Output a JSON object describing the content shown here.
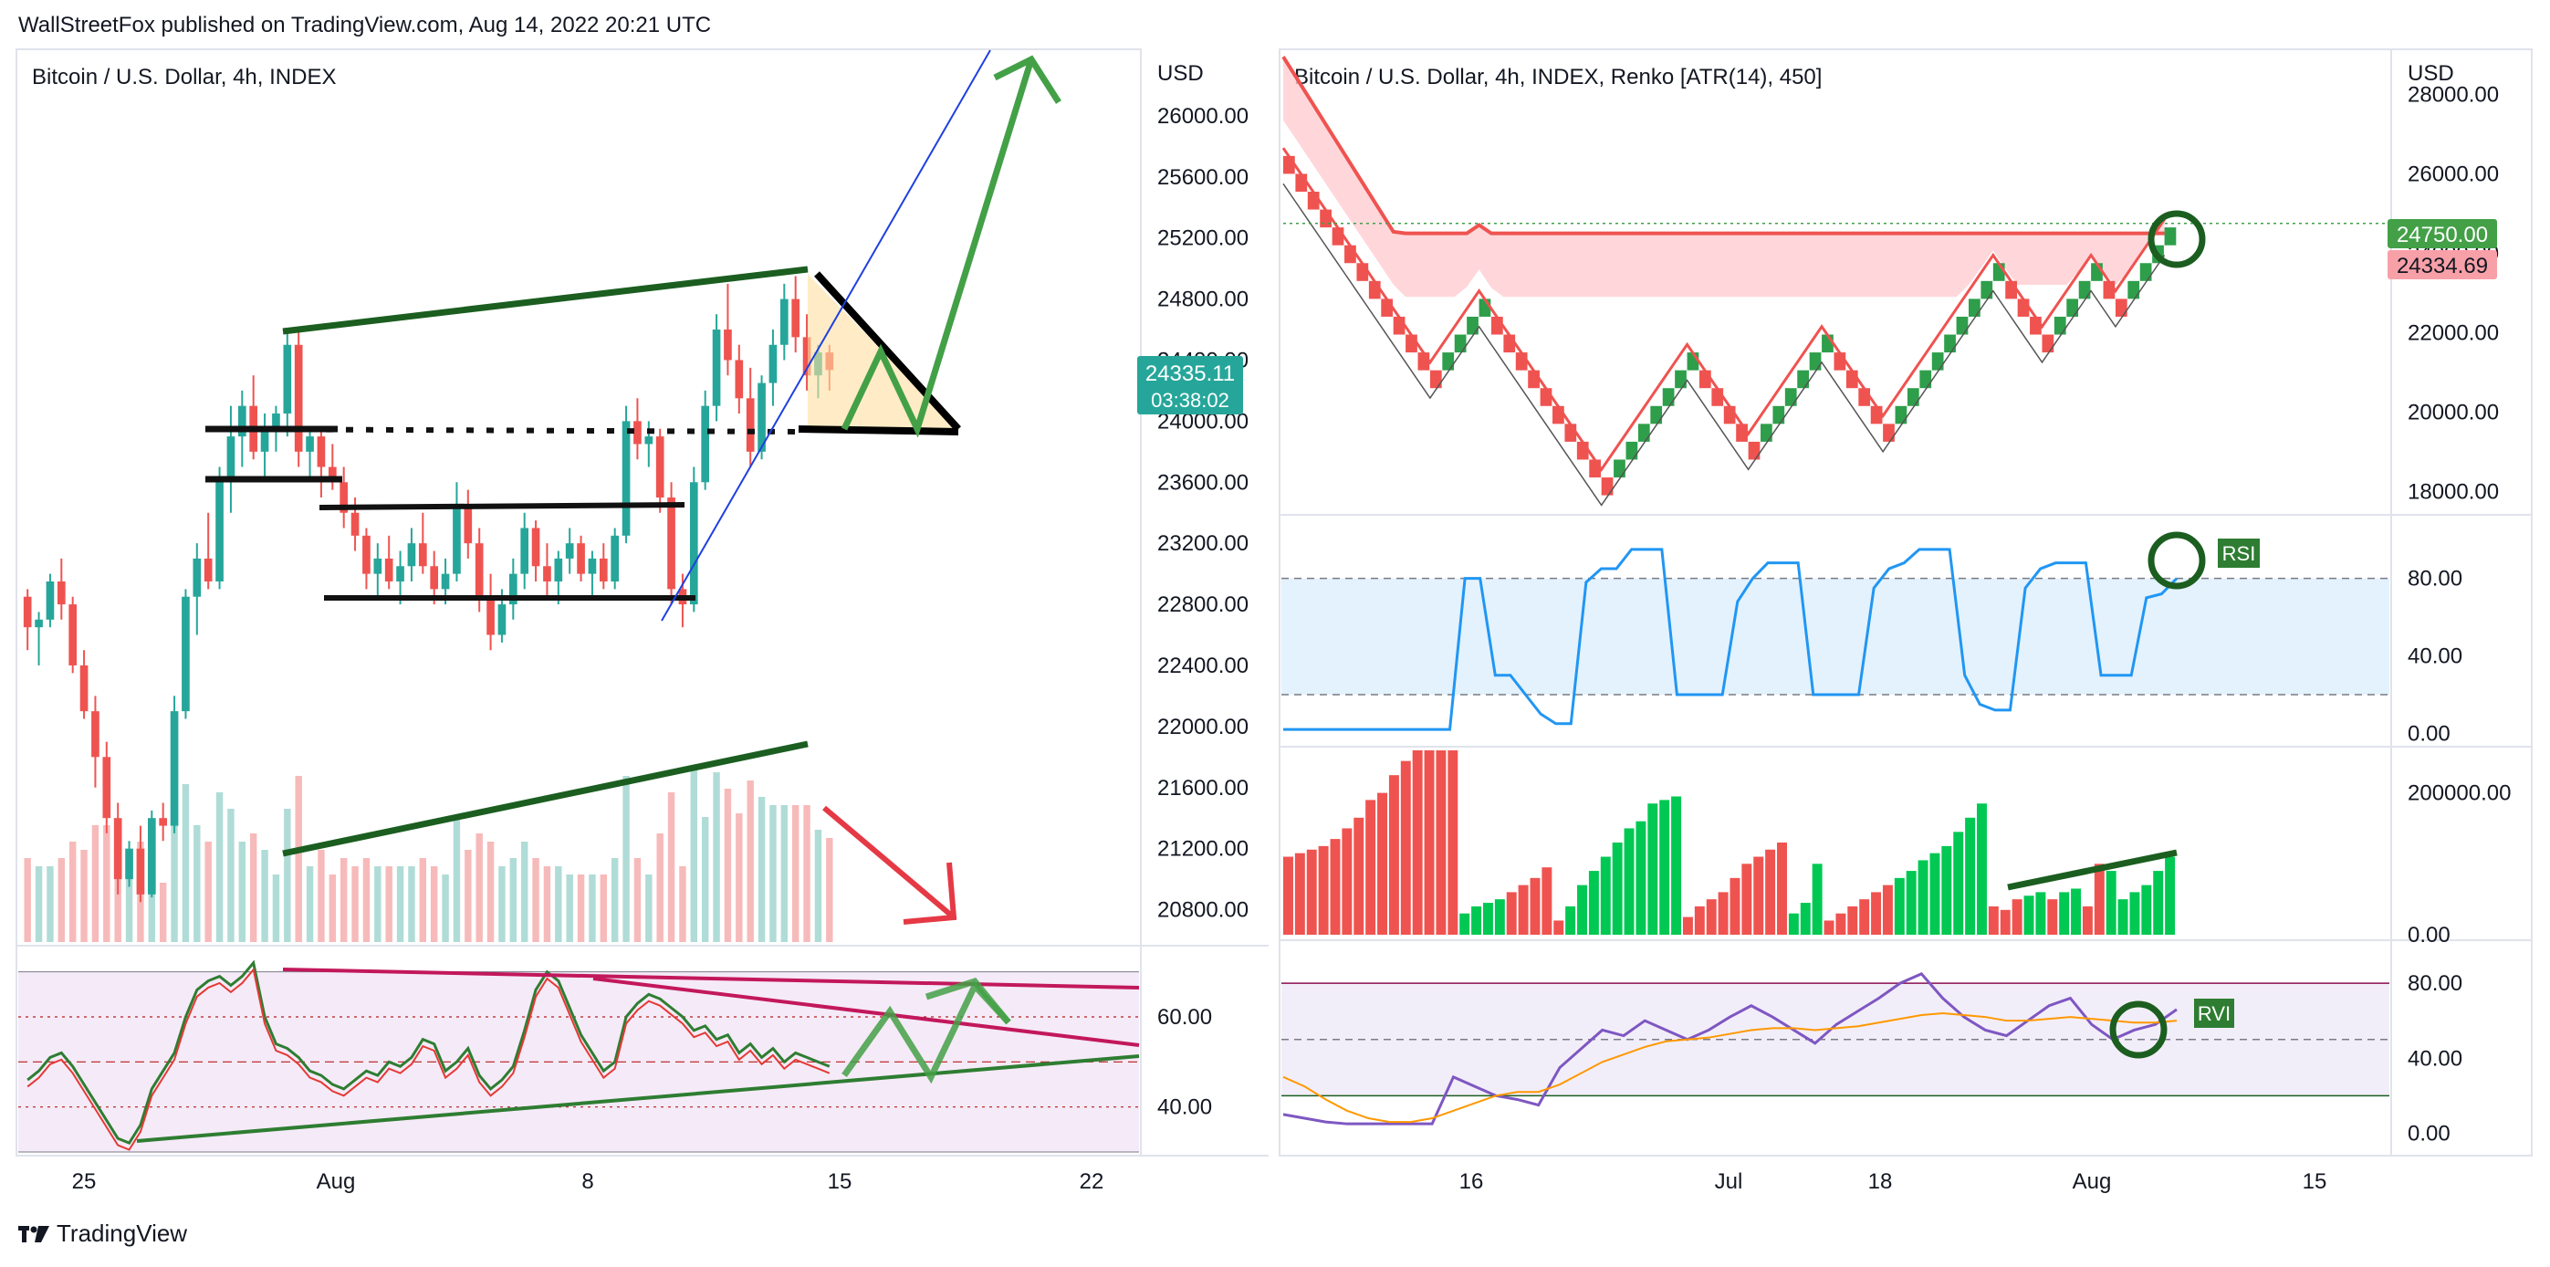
{
  "header": {
    "published": "WallStreetFox published on TradingView.com, Aug 14, 2022 20:21 UTC"
  },
  "footer": {
    "brand": "TradingView",
    "logo_icon": "tradingview-logo-icon"
  },
  "colors": {
    "up": "#26a69a",
    "down": "#ef5350",
    "renko_up": "#00c853",
    "renko_down": "#ef5350",
    "rsi": "#2196f3",
    "rvi": "#7e57c2",
    "rvi_signal": "#ff9800",
    "draw_green": "#1b5e20",
    "bright_green": "#43a047",
    "price_tag": "#26a69a"
  },
  "chart_data": [
    {
      "type": "candlestick",
      "title": "Bitcoin / U.S. Dollar, 4h, INDEX",
      "currency": "USD",
      "y_ticks": [
        "26000.00",
        "25600.00",
        "25200.00",
        "24800.00",
        "24400.00",
        "24000.00",
        "23600.00",
        "23200.00",
        "22800.00",
        "22400.00",
        "22000.00",
        "21600.00",
        "21200.00",
        "20800.00"
      ],
      "ylim": [
        20600,
        26400
      ],
      "x_ticks": [
        "25",
        "Aug",
        "8",
        "15",
        "22"
      ],
      "last_price": "24335.11",
      "countdown": "03:38:02",
      "volume_trendline_note": "rising volume",
      "candles": [
        [
          22850,
          22900,
          22500,
          22650
        ],
        [
          22650,
          22750,
          22400,
          22700
        ],
        [
          22700,
          23000,
          22650,
          22950
        ],
        [
          22950,
          23100,
          22700,
          22800
        ],
        [
          22800,
          22850,
          22350,
          22400
        ],
        [
          22400,
          22500,
          22050,
          22100
        ],
        [
          22100,
          22200,
          21600,
          21800
        ],
        [
          21800,
          21900,
          21300,
          21400
        ],
        [
          21400,
          21500,
          20900,
          21000
        ],
        [
          21000,
          21250,
          20950,
          21200
        ],
        [
          21200,
          21350,
          20850,
          20900
        ],
        [
          20900,
          21450,
          20880,
          21400
        ],
        [
          21400,
          21500,
          21250,
          21350
        ],
        [
          21350,
          22200,
          21300,
          22100
        ],
        [
          22100,
          22900,
          22050,
          22850
        ],
        [
          22850,
          23200,
          22600,
          23100
        ],
        [
          23100,
          23400,
          22900,
          22950
        ],
        [
          22950,
          23700,
          22900,
          23600
        ],
        [
          23600,
          24100,
          23400,
          23900
        ],
        [
          23900,
          24200,
          23700,
          24100
        ],
        [
          24100,
          24300,
          23750,
          23800
        ],
        [
          23800,
          24050,
          23600,
          23950
        ],
        [
          23950,
          24100,
          23800,
          24050
        ],
        [
          24050,
          24600,
          23900,
          24500
        ],
        [
          24500,
          24600,
          23700,
          23800
        ],
        [
          23800,
          23950,
          23600,
          23900
        ],
        [
          23900,
          23950,
          23500,
          23700
        ],
        [
          23700,
          23850,
          23550,
          23600
        ],
        [
          23600,
          23700,
          23300,
          23400
        ],
        [
          23400,
          23500,
          23150,
          23250
        ],
        [
          23250,
          23300,
          22900,
          23000
        ],
        [
          23000,
          23200,
          22850,
          23100
        ],
        [
          23100,
          23250,
          22900,
          22950
        ],
        [
          22950,
          23150,
          22800,
          23050
        ],
        [
          23050,
          23300,
          22950,
          23200
        ],
        [
          23200,
          23400,
          23000,
          23050
        ],
        [
          23050,
          23150,
          22800,
          22900
        ],
        [
          22900,
          23100,
          22800,
          23000
        ],
        [
          23000,
          23600,
          22950,
          23450
        ],
        [
          23450,
          23550,
          23100,
          23200
        ],
        [
          23200,
          23300,
          22750,
          22850
        ],
        [
          22850,
          23000,
          22500,
          22600
        ],
        [
          22600,
          22900,
          22550,
          22800
        ],
        [
          22800,
          23100,
          22700,
          23000
        ],
        [
          23000,
          23400,
          22900,
          23300
        ],
        [
          23300,
          23350,
          22950,
          23050
        ],
        [
          23050,
          23200,
          22850,
          22950
        ],
        [
          22950,
          23150,
          22800,
          23100
        ],
        [
          23100,
          23300,
          23000,
          23200
        ],
        [
          23200,
          23250,
          22950,
          23000
        ],
        [
          23000,
          23150,
          22850,
          23100
        ],
        [
          23100,
          23200,
          22900,
          22950
        ],
        [
          22950,
          23300,
          22900,
          23250
        ],
        [
          23250,
          24100,
          23200,
          24000
        ],
        [
          24000,
          24150,
          23750,
          23850
        ],
        [
          23850,
          24000,
          23700,
          23900
        ],
        [
          23900,
          23950,
          23400,
          23500
        ],
        [
          23500,
          23600,
          22800,
          22900
        ],
        [
          22900,
          23000,
          22650,
          22800
        ],
        [
          22800,
          23700,
          22750,
          23600
        ],
        [
          23600,
          24200,
          23550,
          24100
        ],
        [
          24100,
          24700,
          24000,
          24600
        ],
        [
          24600,
          24900,
          24300,
          24400
        ],
        [
          24400,
          24500,
          24050,
          24150
        ],
        [
          24150,
          24350,
          23700,
          23800
        ],
        [
          23800,
          24300,
          23750,
          24250
        ],
        [
          24250,
          24600,
          24100,
          24500
        ],
        [
          24500,
          24900,
          24400,
          24800
        ],
        [
          24800,
          24950,
          24450,
          24550
        ],
        [
          24550,
          24700,
          24200,
          24300
        ],
        [
          24300,
          24500,
          24150,
          24450
        ],
        [
          24450,
          24500,
          24200,
          24335
        ]
      ]
    },
    {
      "type": "oscillator",
      "title": "",
      "y_ticks": [
        "60.00",
        "40.00"
      ],
      "ylim": [
        30,
        75
      ],
      "values": [
        46,
        48,
        51,
        52,
        49,
        45,
        41,
        37,
        33,
        32,
        36,
        44,
        48,
        52,
        60,
        66,
        68,
        69,
        67,
        69,
        72,
        60,
        54,
        53,
        51,
        48,
        47,
        45,
        44,
        46,
        48,
        47,
        50,
        49,
        51,
        55,
        54,
        48,
        50,
        53,
        47,
        44,
        46,
        49,
        57,
        66,
        70,
        68,
        62,
        56,
        52,
        48,
        50,
        60,
        63,
        65,
        64,
        62,
        60,
        57,
        58,
        55,
        56,
        52,
        54,
        51,
        53,
        50,
        52,
        51,
        50,
        49
      ]
    },
    {
      "type": "renko",
      "title": "Bitcoin / U.S. Dollar, 4h, INDEX, Renko [ATR(14), 450]",
      "currency": "USD",
      "y_ticks": [
        "28000.00",
        "26000.00",
        "24000.00",
        "22000.00",
        "20000.00",
        "18000.00"
      ],
      "ylim": [
        17500,
        29000
      ],
      "x_ticks": [
        "16",
        "Jul",
        "18",
        "Aug",
        "15"
      ],
      "price_tags": [
        "24750.00",
        "24334.69"
      ],
      "bricks": [
        26450,
        26000,
        25550,
        25100,
        24650,
        24200,
        23750,
        23300,
        22850,
        22400,
        21950,
        21500,
        21050,
        21500,
        21950,
        22400,
        22850,
        22400,
        21950,
        21500,
        21050,
        20600,
        20150,
        19700,
        19250,
        18800,
        18350,
        18800,
        19250,
        19700,
        20150,
        20600,
        21050,
        21500,
        21050,
        20600,
        20150,
        19700,
        19250,
        19700,
        20150,
        20600,
        21050,
        21500,
        21950,
        21500,
        21050,
        20600,
        20150,
        19700,
        20150,
        20600,
        21050,
        21500,
        21950,
        22400,
        22850,
        23300,
        23750,
        23300,
        22850,
        22400,
        21950,
        22400,
        22850,
        23300,
        23750,
        23300,
        22850,
        23300,
        23750,
        24200,
        24650
      ]
    },
    {
      "type": "line",
      "title": "",
      "y_ticks": [
        "80.00",
        "40.00",
        "0.00"
      ],
      "ylim": [
        -5,
        110
      ],
      "label": "RSI",
      "levels": [
        80,
        20
      ],
      "values": [
        2,
        2,
        2,
        2,
        2,
        2,
        2,
        2,
        2,
        2,
        2,
        2,
        80,
        80,
        30,
        30,
        20,
        10,
        5,
        5,
        78,
        85,
        85,
        95,
        95,
        95,
        20,
        20,
        20,
        20,
        68,
        80,
        88,
        88,
        88,
        20,
        20,
        20,
        20,
        75,
        85,
        88,
        95,
        95,
        95,
        30,
        15,
        12,
        12,
        75,
        85,
        88,
        88,
        88,
        30,
        30,
        30,
        70,
        72,
        80
      ]
    },
    {
      "type": "bar",
      "title": "",
      "y_ticks": [
        "200000.00",
        "0.00"
      ],
      "ylim": [
        0,
        260000
      ],
      "values": [
        110000,
        115000,
        120000,
        125000,
        135000,
        150000,
        165000,
        190000,
        200000,
        225000,
        245000,
        260000,
        260000,
        260000,
        260000,
        30000,
        40000,
        45000,
        50000,
        60000,
        70000,
        80000,
        95000,
        20000,
        40000,
        70000,
        90000,
        110000,
        130000,
        150000,
        160000,
        185000,
        190000,
        195000,
        25000,
        40000,
        50000,
        60000,
        80000,
        100000,
        110000,
        120000,
        130000,
        30000,
        45000,
        100000,
        20000,
        30000,
        40000,
        50000,
        60000,
        70000,
        80000,
        90000,
        105000,
        115000,
        125000,
        145000,
        165000,
        185000,
        40000,
        35000,
        50000,
        55000,
        60000,
        50000,
        60000,
        65000,
        40000,
        100000,
        90000,
        50000,
        60000,
        70000,
        90000,
        110000
      ],
      "colors_up": [
        0,
        0,
        0,
        0,
        0,
        0,
        0,
        0,
        0,
        0,
        0,
        0,
        0,
        0,
        0,
        1,
        1,
        1,
        1,
        0,
        0,
        0,
        0,
        0,
        1,
        1,
        1,
        1,
        1,
        1,
        1,
        1,
        1,
        1,
        0,
        0,
        0,
        0,
        0,
        0,
        0,
        0,
        0,
        1,
        1,
        1,
        0,
        0,
        0,
        0,
        0,
        0,
        1,
        1,
        1,
        1,
        1,
        1,
        1,
        1,
        0,
        0,
        0,
        1,
        1,
        0,
        1,
        1,
        0,
        0,
        1,
        1,
        1,
        1,
        1,
        1
      ]
    },
    {
      "type": "line",
      "title": "",
      "y_ticks": [
        "80.00",
        "40.00",
        "0.00"
      ],
      "ylim": [
        -10,
        100
      ],
      "label": "RVI",
      "series": [
        {
          "values": [
            10,
            8,
            6,
            5,
            5,
            5,
            5,
            5,
            30,
            25,
            20,
            18,
            15,
            35,
            45,
            55,
            52,
            60,
            55,
            50,
            55,
            62,
            68,
            62,
            55,
            48,
            58,
            65,
            72,
            80,
            85,
            72,
            62,
            55,
            52,
            60,
            68,
            72,
            58,
            50,
            55,
            58,
            66
          ]
        },
        {
          "values": [
            30,
            25,
            18,
            12,
            8,
            6,
            6,
            8,
            12,
            16,
            20,
            22,
            22,
            26,
            32,
            38,
            42,
            46,
            49,
            50,
            51,
            53,
            55,
            56,
            56,
            55,
            56,
            57,
            59,
            61,
            63,
            64,
            63,
            62,
            60,
            60,
            61,
            62,
            61,
            60,
            59,
            59,
            60
          ]
        }
      ]
    }
  ]
}
